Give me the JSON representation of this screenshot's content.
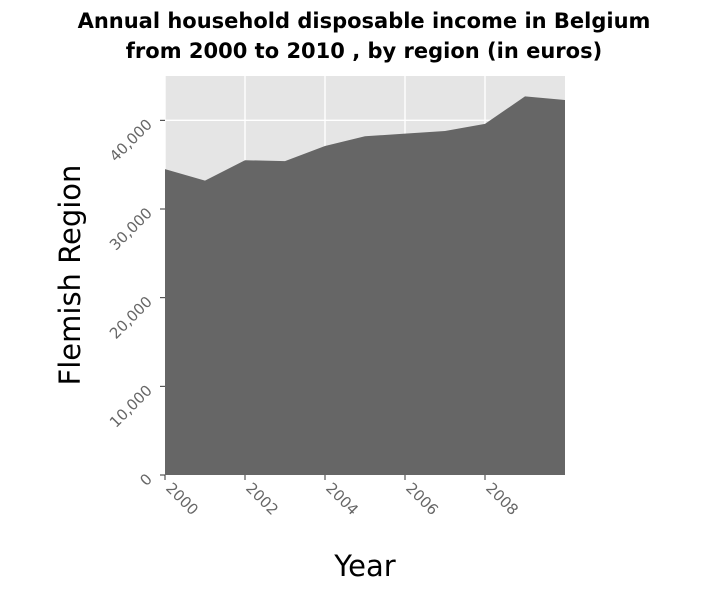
{
  "chart_data": {
    "type": "area",
    "title_line1": "Annual household disposable income in Belgium",
    "title_line2": "from 2000 to 2010 , by region (in euros)",
    "xlabel": "Year",
    "ylabel": "Flemish Region",
    "x": [
      2000,
      2001,
      2002,
      2003,
      2004,
      2005,
      2006,
      2007,
      2008,
      2009,
      2010
    ],
    "series": [
      {
        "values": [
          34500,
          33200,
          35500,
          35400,
          37100,
          38200,
          38500,
          38800,
          39600,
          42700,
          42300
        ]
      }
    ],
    "xlim": [
      2000,
      2010
    ],
    "ylim": [
      0,
      45000
    ],
    "xticks": [
      2000,
      2002,
      2004,
      2006,
      2008
    ],
    "xtick_labels": [
      "2000",
      "2002",
      "2004",
      "2006",
      "2008"
    ],
    "yticks": [
      0,
      10000,
      20000,
      30000,
      40000
    ],
    "ytick_labels": [
      "0",
      "10,000",
      "20,000",
      "30,000",
      "40,000"
    ],
    "grid": true,
    "colors": {
      "panel_background": "#e5e5e5",
      "grid": "#ffffff",
      "area_fill": "#666666",
      "tick_text": "#666666"
    }
  }
}
